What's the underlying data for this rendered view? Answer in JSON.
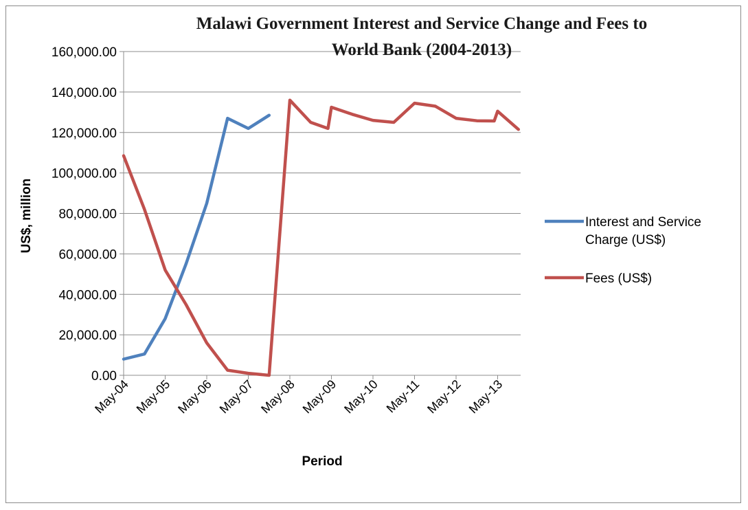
{
  "chart_data": {
    "type": "line",
    "title_lines": [
      "Malawi Government Interest and Service Change and Fees to",
      "World Bank (2004-2013)"
    ],
    "xlabel": "Period",
    "ylabel": "US$, million",
    "ylim": [
      0,
      160000
    ],
    "y_ticks": [
      "0.00",
      "20,000.00",
      "40,000.00",
      "60,000.00",
      "80,000.00",
      "100,000.00",
      "120,000.00",
      "140,000.00",
      "160,000.00"
    ],
    "x_ticks": [
      "May-04",
      "May-05",
      "May-06",
      "May-07",
      "May-08",
      "May-09",
      "May-10",
      "May-11",
      "May-12",
      "May-13"
    ],
    "grid": "horizontal",
    "legend_position": "right",
    "series": [
      {
        "name": "Interest and Service Charge (US$)",
        "name_lines": [
          "Interest and Service",
          "Charge (US$)"
        ],
        "color": "#4F81BD",
        "points": [
          {
            "period": "May-04",
            "value": 8000
          },
          {
            "period": "Nov-04",
            "value": 10500
          },
          {
            "period": "May-05",
            "value": 28000
          },
          {
            "period": "Nov-05",
            "value": 55000
          },
          {
            "period": "May-06",
            "value": 85000
          },
          {
            "period": "Nov-06",
            "value": 127000
          },
          {
            "period": "May-07",
            "value": 122000
          },
          {
            "period": "Nov-07",
            "value": 128500
          }
        ]
      },
      {
        "name": "Fees (US$)",
        "name_lines": [
          "Fees (US$)"
        ],
        "color": "#C0504D",
        "points": [
          {
            "period": "May-04",
            "value": 108500
          },
          {
            "period": "Nov-04",
            "value": 82000
          },
          {
            "period": "May-05",
            "value": 52000
          },
          {
            "period": "Nov-05",
            "value": 35000
          },
          {
            "period": "May-06",
            "value": 16000
          },
          {
            "period": "Nov-06",
            "value": 2500
          },
          {
            "period": "May-07",
            "value": 1000
          },
          {
            "period": "Nov-07",
            "value": 0
          },
          {
            "period": "May-08",
            "value": 136000
          },
          {
            "period": "Nov-08",
            "value": 125000
          },
          {
            "period": "Apr-09",
            "value": 122000
          },
          {
            "period": "May-09",
            "value": 132500
          },
          {
            "period": "Nov-09",
            "value": 129000
          },
          {
            "period": "May-10",
            "value": 126000
          },
          {
            "period": "Nov-10",
            "value": 125000
          },
          {
            "period": "May-11",
            "value": 134500
          },
          {
            "period": "Nov-11",
            "value": 133000
          },
          {
            "period": "May-12",
            "value": 127000
          },
          {
            "period": "Nov-12",
            "value": 125800
          },
          {
            "period": "Apr-13",
            "value": 125700
          },
          {
            "period": "May-13",
            "value": 130500
          },
          {
            "period": "Nov-13",
            "value": 121500
          }
        ]
      }
    ]
  }
}
